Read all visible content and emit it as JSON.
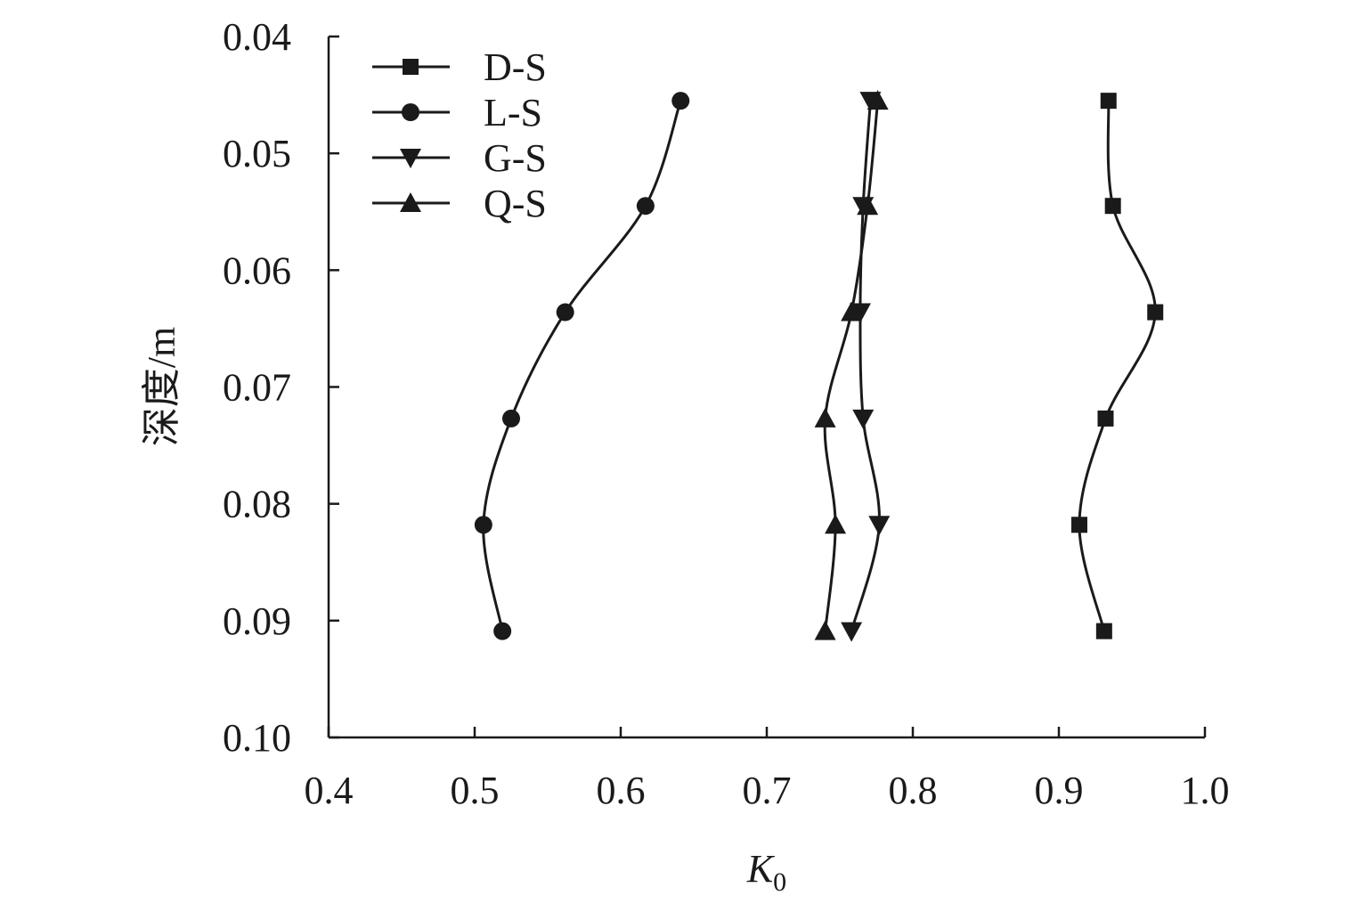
{
  "chart_data": {
    "type": "line",
    "title": "",
    "xlabel": "K",
    "xlabel_subscript": "0",
    "ylabel": "深度/m",
    "xlim": [
      0.4,
      1.0
    ],
    "ylim": [
      0.04,
      0.1
    ],
    "y_inverted": true,
    "grid": false,
    "legend_position": "top-left",
    "xticks": [
      "0.4",
      "0.5",
      "0.6",
      "0.7",
      "0.8",
      "0.9",
      "1.0"
    ],
    "yticks": [
      "0.04",
      "0.05",
      "0.06",
      "0.07",
      "0.08",
      "0.09",
      "0.10"
    ],
    "series": [
      {
        "name": "D-S",
        "marker": "square",
        "color": "#1a1a1a",
        "points": [
          {
            "x": 0.934,
            "y": 0.0455
          },
          {
            "x": 0.937,
            "y": 0.0545
          },
          {
            "x": 0.966,
            "y": 0.0636
          },
          {
            "x": 0.932,
            "y": 0.0727
          },
          {
            "x": 0.914,
            "y": 0.0818
          },
          {
            "x": 0.931,
            "y": 0.0909
          }
        ]
      },
      {
        "name": "L-S",
        "marker": "circle",
        "color": "#1a1a1a",
        "points": [
          {
            "x": 0.641,
            "y": 0.0455
          },
          {
            "x": 0.617,
            "y": 0.0545
          },
          {
            "x": 0.562,
            "y": 0.0636
          },
          {
            "x": 0.525,
            "y": 0.0727
          },
          {
            "x": 0.506,
            "y": 0.0818
          },
          {
            "x": 0.519,
            "y": 0.0909
          }
        ]
      },
      {
        "name": "G-S",
        "marker": "triangle-down",
        "color": "#1a1a1a",
        "points": [
          {
            "x": 0.771,
            "y": 0.0455
          },
          {
            "x": 0.766,
            "y": 0.0545
          },
          {
            "x": 0.764,
            "y": 0.0636
          },
          {
            "x": 0.766,
            "y": 0.0727
          },
          {
            "x": 0.777,
            "y": 0.0818
          },
          {
            "x": 0.758,
            "y": 0.0909
          }
        ]
      },
      {
        "name": "Q-S",
        "marker": "triangle-up",
        "color": "#1a1a1a",
        "points": [
          {
            "x": 0.776,
            "y": 0.0455
          },
          {
            "x": 0.769,
            "y": 0.0545
          },
          {
            "x": 0.758,
            "y": 0.0636
          },
          {
            "x": 0.74,
            "y": 0.0727
          },
          {
            "x": 0.747,
            "y": 0.0818
          },
          {
            "x": 0.74,
            "y": 0.0909
          }
        ]
      }
    ]
  }
}
